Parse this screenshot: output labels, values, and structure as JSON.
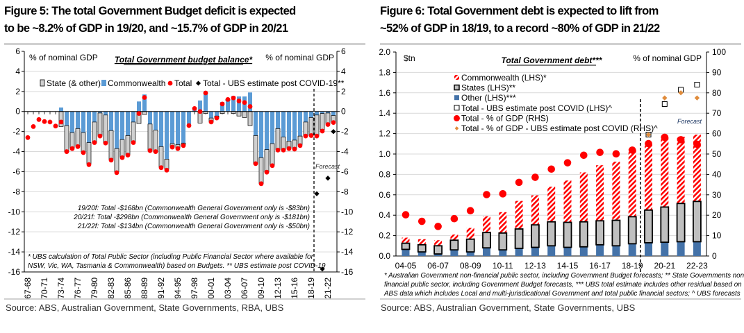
{
  "figures": {
    "left": {
      "title_line1": "Figure 5: The total Government Budget deficit is expected",
      "title_line2": "to be ~8.2% of GDP in 19/20, and ~15.7% of GDP in 20/21",
      "source": "Source:  ABS, Australian Government, State Governments, RBA, UBS"
    },
    "right": {
      "title_line1": "Figure 6: Total Government debt is expected to lift from",
      "title_line2": "~52% of GDP in 18/19, to a record ~80% of GDP in 21/22",
      "source": "Source:  ABS, Australian Government, State Governments,  UBS"
    }
  },
  "colors": {
    "commonwealth_blue": "#5b9bd5",
    "state_gray": "#d0d0d0",
    "total_red": "#ff0000",
    "other_blue": "#4472a8",
    "ubs_orange": "#e08c3c",
    "grid": "#d9d9d9"
  },
  "chart_data": [
    {
      "type": "bar",
      "stacked": true,
      "title": "Total Government budget balance*",
      "ylabel_left": "% of nominal GDP",
      "ylabel_right": "% of nominal GDP",
      "ylim": [
        -16,
        6
      ],
      "yticks": [
        6,
        4,
        2,
        0,
        -2,
        -4,
        -6,
        -8,
        -10,
        -12,
        -14,
        -16
      ],
      "grid": true,
      "legend_placement": "top",
      "categories": [
        "67-68",
        "68-69",
        "69-70",
        "70-71",
        "71-72",
        "72-73",
        "73-74",
        "74-75",
        "75-76",
        "76-77",
        "77-78",
        "78-79",
        "79-80",
        "80-81",
        "81-82",
        "82-83",
        "83-84",
        "84-85",
        "85-86",
        "86-87",
        "87-88",
        "88-89",
        "89-90",
        "90-91",
        "91-92",
        "92-93",
        "93-94",
        "94-95",
        "95-96",
        "96-97",
        "97-98",
        "98-99",
        "99-00",
        "00-01",
        "01-02",
        "02-03",
        "03-04",
        "04-05",
        "05-06",
        "06-07",
        "07-08",
        "08-09",
        "09-10",
        "10-11",
        "11-12",
        "12-13",
        "13-14",
        "14-15",
        "15-16",
        "16-17",
        "17-18",
        "18-19",
        "19-20",
        "20-21",
        "21-22",
        "22-23"
      ],
      "xtick_labels": [
        "67-68",
        "70-71",
        "73-74",
        "76-77",
        "79-80",
        "82-83",
        "85-86",
        "88-89",
        "91-92",
        "94-95",
        "97-98",
        "00-01",
        "03-04",
        "06-07",
        "09-10",
        "12-13",
        "15-16",
        "18-19",
        "21-22"
      ],
      "series": [
        {
          "name": "State (& other)",
          "kind": "bar",
          "values": [
            null,
            null,
            null,
            null,
            null,
            null,
            -1.5,
            -2.6,
            -1.5,
            -1.75,
            -2.0,
            -2.1,
            -2.05,
            -2.25,
            -2.75,
            -2.9,
            -2.3,
            -1.7,
            -1.9,
            -1.95,
            -1.2,
            -0.3,
            -2.65,
            -2.15,
            -2.05,
            -1.0,
            -0.3,
            -0.3,
            -0.15,
            0.0,
            0.0,
            -1.15,
            -0.2,
            -0.4,
            -0.2,
            -0.2,
            0.1,
            -0.2,
            -0.45,
            -0.6,
            -1.4,
            -2.85,
            -2.6,
            -2.2,
            -2.1,
            -2.1,
            -1.25,
            -0.7,
            -0.85,
            -0.85,
            -1.35,
            -1.8,
            -2.05,
            -1.6,
            -1.05,
            -0.6
          ]
        },
        {
          "name": "Commonwealth",
          "kind": "bar",
          "values": [
            null,
            null,
            null,
            null,
            null,
            null,
            0.4,
            -1.4,
            -2.1,
            -1.7,
            -2.1,
            -3.1,
            -1.05,
            -0.15,
            -0.35,
            -1.9,
            -3.7,
            -2.8,
            -2.4,
            -1.05,
            1.0,
            1.7,
            -1.25,
            -1.85,
            -3.5,
            -4.75,
            -3.2,
            -3.3,
            -3.15,
            -1.3,
            0.3,
            1.1,
            2.0,
            -0.65,
            -0.45,
            0.95,
            1.1,
            1.55,
            1.5,
            1.5,
            1.9,
            -2.4,
            -4.6,
            -3.8,
            -3.2,
            -1.7,
            -2.55,
            -2.95,
            -2.85,
            -2.45,
            -1.05,
            -0.6,
            -0.35,
            -0.2,
            -0.15,
            -0.4
          ]
        },
        {
          "name": "Total",
          "kind": "dot",
          "values": [
            -2.6,
            -1.5,
            -0.8,
            -1.0,
            -1.05,
            -1.45,
            -1.05,
            -4.0,
            -3.7,
            -3.5,
            -4.1,
            -5.3,
            -3.1,
            -2.45,
            -3.15,
            -4.85,
            -6.1,
            -4.6,
            -4.35,
            -3.1,
            -0.2,
            1.4,
            -3.9,
            -4.0,
            -5.6,
            -5.85,
            -3.55,
            -3.7,
            -3.4,
            -1.4,
            0.3,
            0.0,
            1.85,
            -1.05,
            -0.65,
            0.75,
            1.2,
            1.35,
            1.05,
            0.9,
            0.5,
            -5.2,
            -7.2,
            -6.05,
            -5.4,
            -3.85,
            -3.85,
            -3.7,
            -3.75,
            -3.4,
            -2.45,
            -2.4,
            -2.45,
            -1.95,
            -1.3,
            -1.1
          ]
        },
        {
          "name": "Total - UBS estimate post COVID-19**",
          "kind": "diamond",
          "values": [
            null,
            null,
            null,
            null,
            null,
            null,
            null,
            null,
            null,
            null,
            null,
            null,
            null,
            null,
            null,
            null,
            null,
            null,
            null,
            null,
            null,
            null,
            null,
            null,
            null,
            null,
            null,
            null,
            null,
            null,
            null,
            null,
            null,
            null,
            null,
            null,
            null,
            null,
            null,
            null,
            null,
            null,
            null,
            null,
            null,
            null,
            null,
            null,
            null,
            null,
            null,
            null,
            -8.2,
            -15.7,
            -6.65,
            -2.0
          ]
        }
      ],
      "forecast_label": "Forecast",
      "forecast_start": "19-20",
      "annotations": [
        "19/20f: Total -$168bn (Commonwealth General Government only is -$83bn)",
        "20/21f: Total -$298bn (Commonwealth General Government only is -$181bn)",
        "21/22f: Total -$134bn (Commonwealth General Government only is -$50bn)"
      ],
      "footnote_line1": "* UBS calculation of Total Public Sector (including Public Financial Sector where available for",
      "footnote_line2": "NSW, Vic, WA, Tasmania & Commonwealth) based on Budgets. ** UBS estimate post COVID-19"
    },
    {
      "type": "bar",
      "stacked": true,
      "title": "Total Government debt***",
      "ylabel_left": "$tn",
      "ylabel_right": "% of nominal GDP",
      "ylim": [
        0,
        2.0
      ],
      "ylim_right": [
        0,
        100
      ],
      "yticks": [
        "2.0",
        "1.8",
        "1.6",
        "1.4",
        "1.2",
        "1.0",
        "0.8",
        "0.6",
        "0.4",
        "0.2",
        "0.0"
      ],
      "yticks_right": [
        100,
        90,
        80,
        70,
        60,
        50,
        40,
        30,
        20,
        10,
        0
      ],
      "grid": true,
      "legend_placement": "top-center",
      "categories": [
        "04-05",
        "05-06",
        "06-07",
        "07-08",
        "08-09",
        "09-10",
        "10-11",
        "11-12",
        "12-13",
        "13-14",
        "14-15",
        "15-16",
        "16-17",
        "17-18",
        "18-19",
        "19-20",
        "20-21",
        "21-22",
        "22-23"
      ],
      "xtick_labels": [
        "04-05",
        "06-07",
        "08-09",
        "10-11",
        "12-13",
        "14-15",
        "16-17",
        "18-19",
        "20-21",
        "22-23"
      ],
      "series": [
        {
          "name": "Other (LHS)***",
          "kind": "bar",
          "values": [
            0.065,
            0.04,
            0.02,
            0.06,
            0.04,
            0.08,
            0.06,
            0.075,
            0.085,
            0.1,
            0.085,
            0.09,
            0.11,
            0.1,
            0.12,
            0.13,
            0.135,
            0.14,
            0.14
          ]
        },
        {
          "name": "States (LHS)**",
          "kind": "bar",
          "values": [
            0.06,
            0.07,
            0.08,
            0.095,
            0.125,
            0.15,
            0.165,
            0.19,
            0.22,
            0.235,
            0.245,
            0.245,
            0.235,
            0.25,
            0.265,
            0.32,
            0.345,
            0.375,
            0.395
          ]
        },
        {
          "name": "Commonwealth (LHS)*",
          "kind": "bar-hatched",
          "values": [
            0.055,
            0.055,
            0.055,
            0.055,
            0.11,
            0.16,
            0.205,
            0.275,
            0.29,
            0.345,
            0.41,
            0.485,
            0.545,
            0.575,
            0.66,
            0.65,
            0.69,
            0.655,
            0.655
          ]
        },
        {
          "name": "Total - UBS estimate post COVID (LHS)^",
          "kind": "square",
          "values": [
            null,
            null,
            null,
            null,
            null,
            null,
            null,
            null,
            null,
            null,
            null,
            null,
            null,
            null,
            null,
            1.19,
            1.49,
            1.63,
            1.68
          ]
        },
        {
          "name": "Total - % of GDP (RHS)",
          "kind": "dot",
          "axis": "right",
          "values": [
            20.2,
            17.0,
            14.5,
            18.3,
            22.2,
            30.1,
            30.5,
            36.1,
            38.6,
            42.6,
            45.7,
            49.4,
            50.8,
            50.1,
            51.9,
            55.1,
            58.2,
            57.0,
            54.8
          ]
        },
        {
          "name": "Total - % of GDP - UBS estimate post COVID (RHS)^",
          "kind": "diamond",
          "axis": "right",
          "values": [
            null,
            null,
            null,
            null,
            null,
            null,
            null,
            null,
            null,
            null,
            null,
            null,
            null,
            null,
            null,
            59.5,
            77.5,
            80,
            77.5
          ]
        }
      ],
      "legend_order": [
        "Commonwealth (LHS)*",
        "States (LHS)**",
        "Other (LHS)***",
        "Total - UBS estimate post COVID (LHS)^",
        "Total - % of GDP (RHS)",
        "Total - % of GDP - UBS estimate post COVID (RHS)^"
      ],
      "forecast_label": "Forecast",
      "forecast_start": "19-20",
      "footnote_line1": "* Australian Government non-financial public sector, including Government Budget forecasts; ** State Governments non-",
      "footnote_line2": "financial public sector, including Government Budget forecasts, *** UBS total estimate includes other residual based on",
      "footnote_line3": "ABS data which includes Local and multi-jurisdicational Government and total public  financial sectors; ^ UBS forecasts"
    }
  ]
}
